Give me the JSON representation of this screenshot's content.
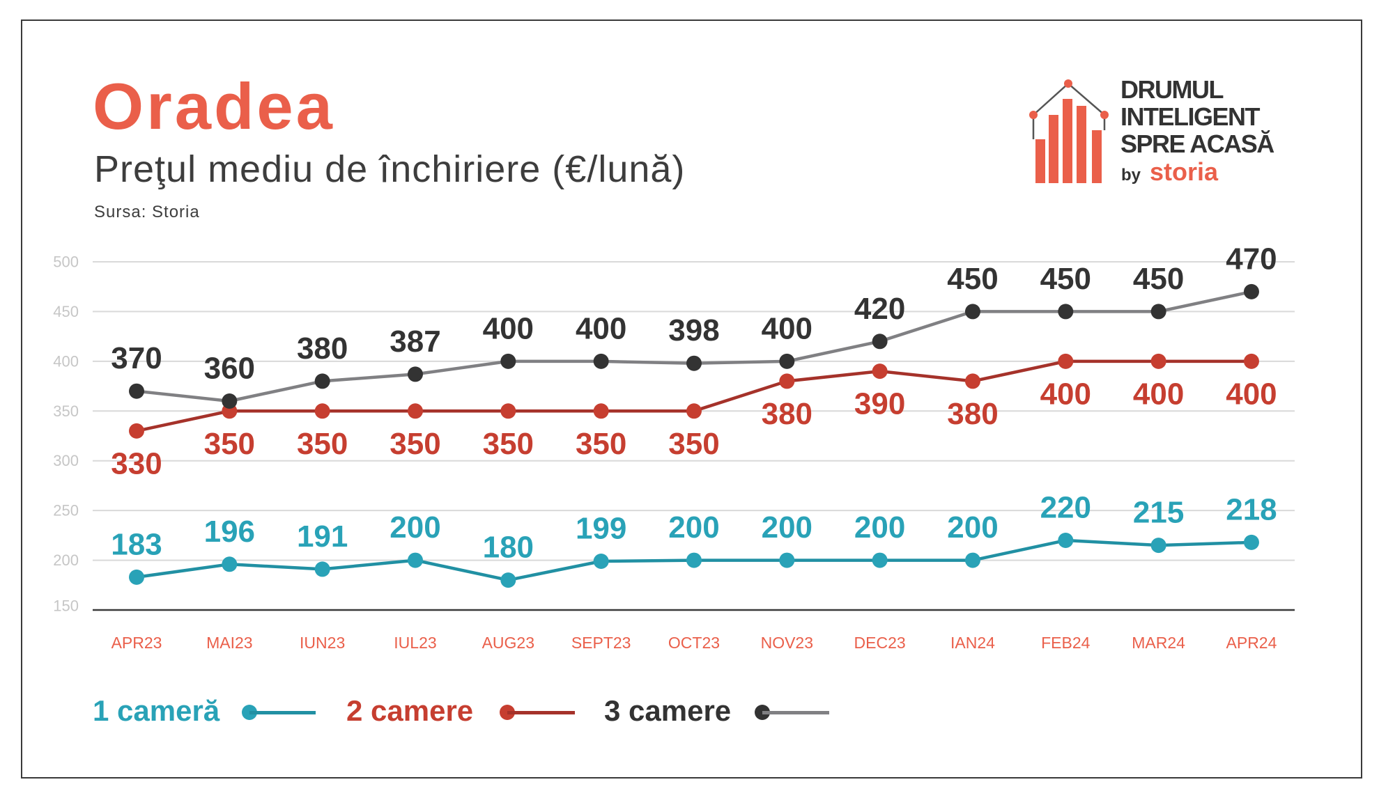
{
  "colors": {
    "accent": "#ea5f4a",
    "text_dark": "#333333",
    "grid": "#d9d9d9",
    "axis_tick_label": "#c6c6c6"
  },
  "logo": {
    "line1": "DRUMUL",
    "line2": "INTELIGENT",
    "line3": "SPRE ACASĂ",
    "by": "by",
    "brand": "storia"
  },
  "chart_data": {
    "type": "line",
    "title": "Oradea",
    "subtitle": "Preţul mediu de închiriere (€/lună)",
    "source": "Sursa: Storia",
    "categories": [
      "APR23",
      "MAI23",
      "IUN23",
      "IUL23",
      "AUG23",
      "SEPT23",
      "OCT23",
      "NOV23",
      "DEC23",
      "IAN24",
      "FEB24",
      "MAR24",
      "APR24"
    ],
    "ylim": [
      150,
      500
    ],
    "yticks": [
      500,
      450,
      400,
      350,
      300,
      250,
      200,
      150
    ],
    "grid": true,
    "legend": "bottom-left",
    "series": [
      {
        "name": "1 cameră",
        "color": "#29a2b7",
        "line_color": "#2190a3",
        "values": [
          183,
          196,
          191,
          200,
          180,
          199,
          200,
          200,
          200,
          200,
          220,
          215,
          218
        ]
      },
      {
        "name": "2 camere",
        "color": "#c63e30",
        "line_color": "#a5322a",
        "values": [
          330,
          350,
          350,
          350,
          350,
          350,
          350,
          380,
          390,
          380,
          400,
          400,
          400
        ]
      },
      {
        "name": "3 camere",
        "color": "#333333",
        "line_color": "#808083",
        "values": [
          370,
          360,
          380,
          387,
          400,
          400,
          398,
          400,
          420,
          450,
          450,
          450,
          470
        ]
      }
    ]
  }
}
